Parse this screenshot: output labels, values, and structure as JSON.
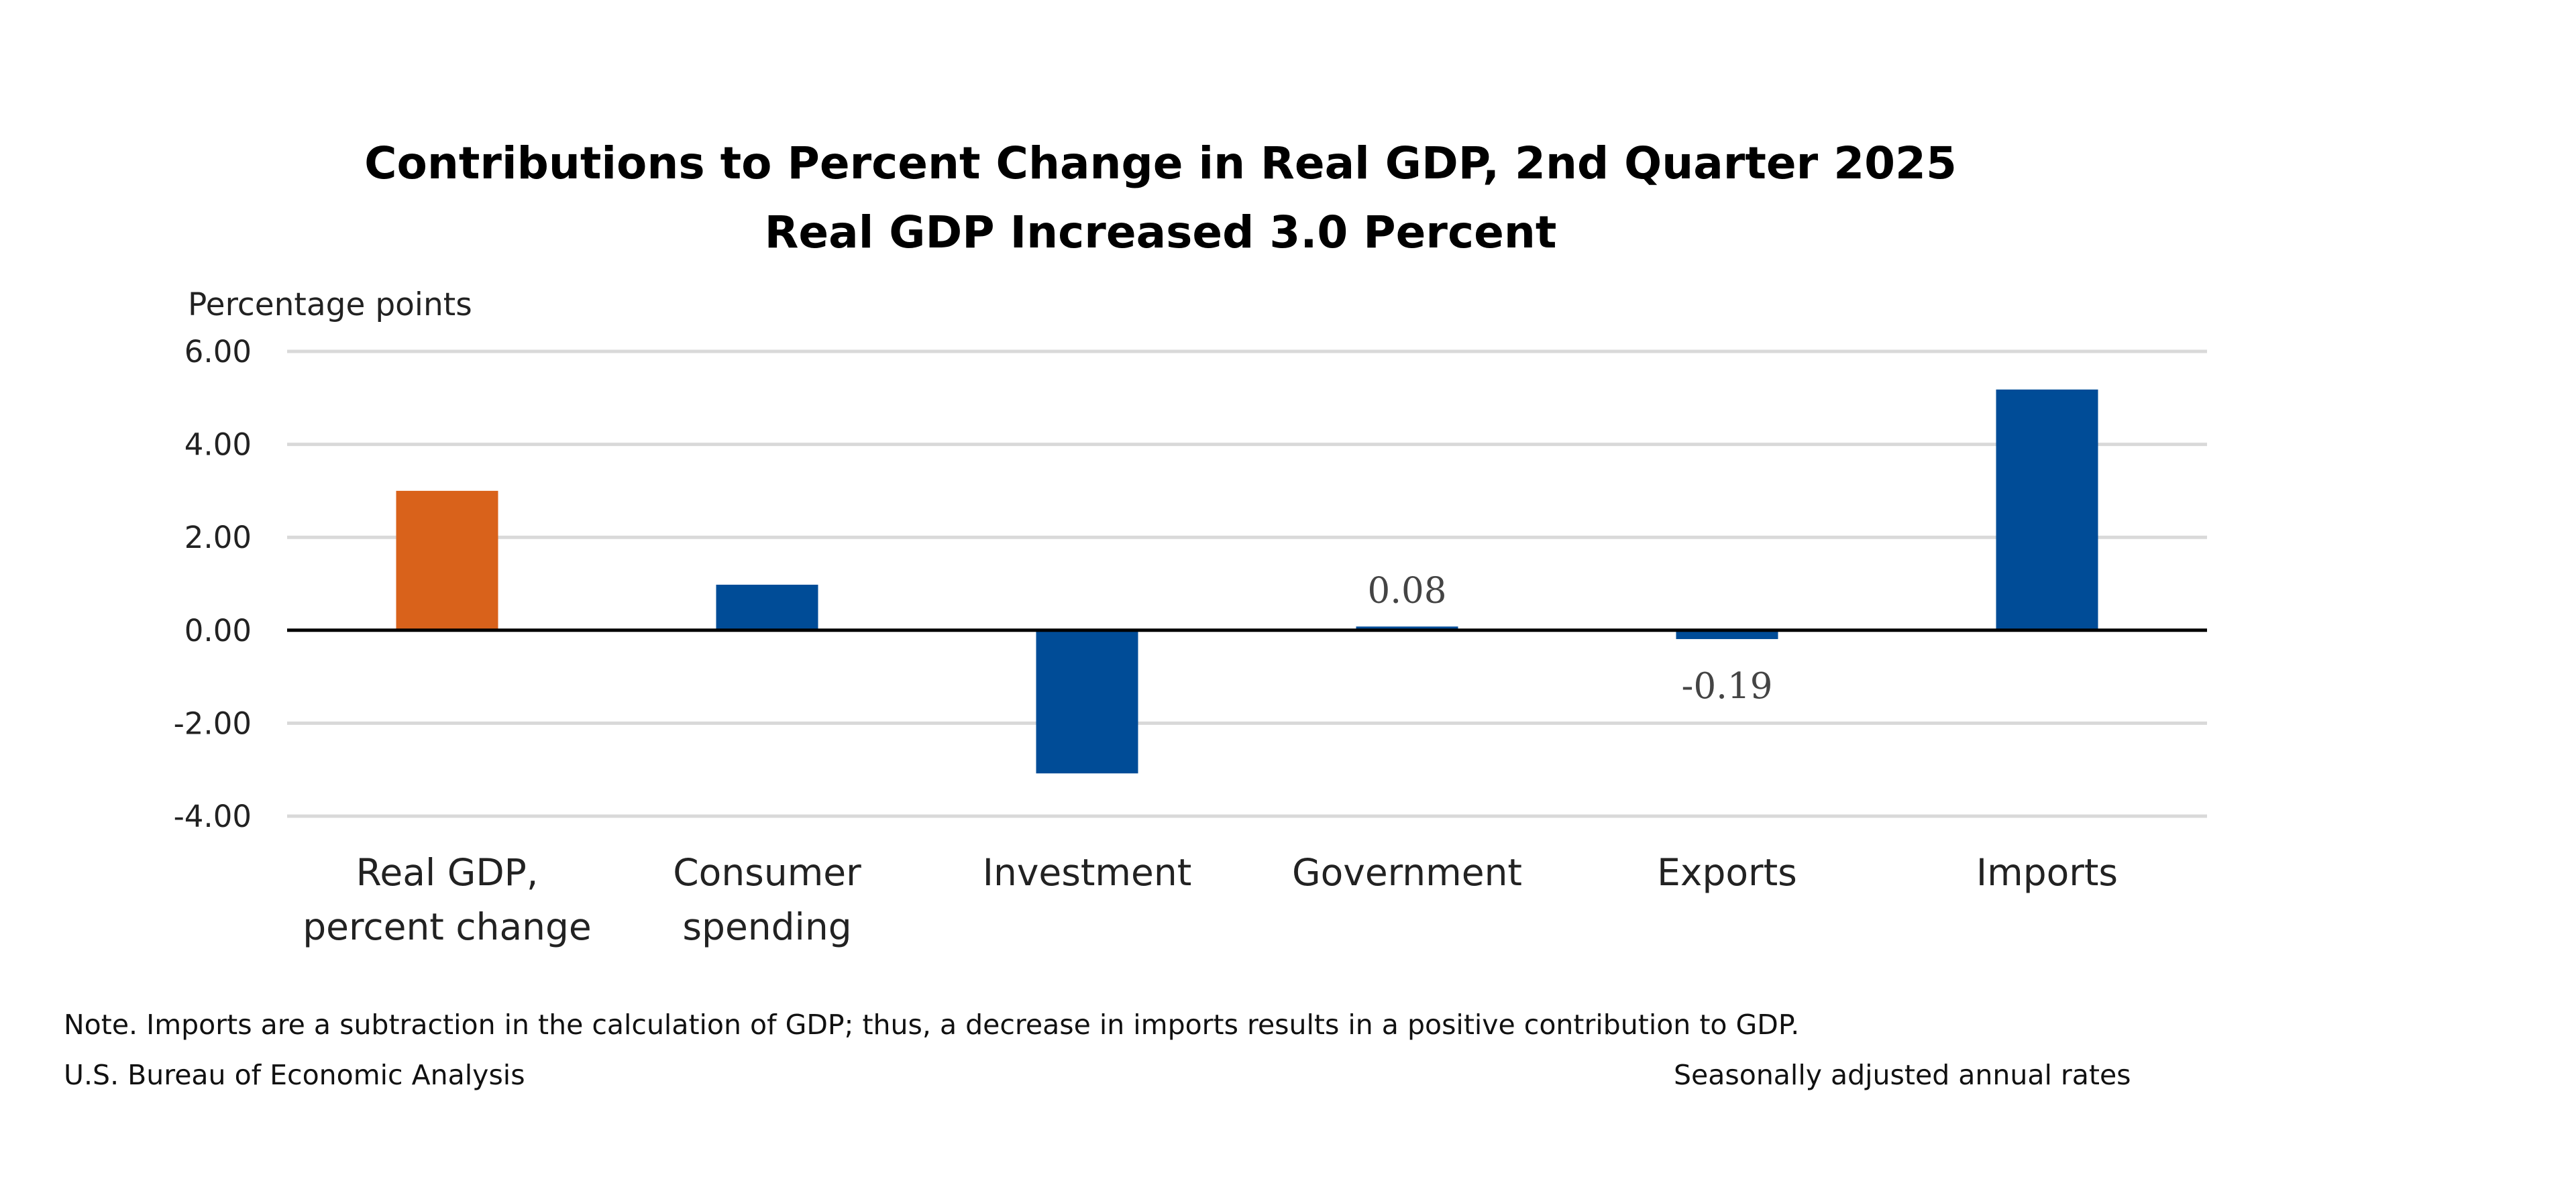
{
  "chart_data": {
    "type": "bar",
    "title": [
      "Contributions to Percent Change in Real GDP, 2nd Quarter 2025",
      "Real GDP Increased 3.0 Percent"
    ],
    "ylabel": "Percentage points",
    "xlabel": "",
    "ylim": [
      -4,
      6
    ],
    "yticks": [
      6,
      4,
      2,
      0,
      -2,
      -4
    ],
    "ytick_labels": [
      "6.00",
      "4.00",
      "2.00",
      "0.00",
      "-2.00",
      "-4.00"
    ],
    "grid": true,
    "categories": [
      [
        "Real GDP,",
        "percent change"
      ],
      [
        "Consumer",
        "spending"
      ],
      [
        "Investment"
      ],
      [
        "Government"
      ],
      [
        "Exports"
      ],
      [
        "Imports"
      ]
    ],
    "values": [
      3.0,
      0.98,
      -3.08,
      0.08,
      -0.19,
      5.18
    ],
    "colors": [
      "#d9621b",
      "#004c97",
      "#004c97",
      "#004c97",
      "#004c97",
      "#004c97"
    ],
    "data_labels": [
      "",
      "",
      "",
      "0.08",
      "-0.19",
      ""
    ]
  },
  "footer": {
    "note": "Note. Imports are a subtraction in the calculation of GDP; thus, a decrease in imports results in a positive contribution to GDP.",
    "source": "U.S. Bureau of Economic Analysis",
    "rates": "Seasonally adjusted annual rates"
  }
}
